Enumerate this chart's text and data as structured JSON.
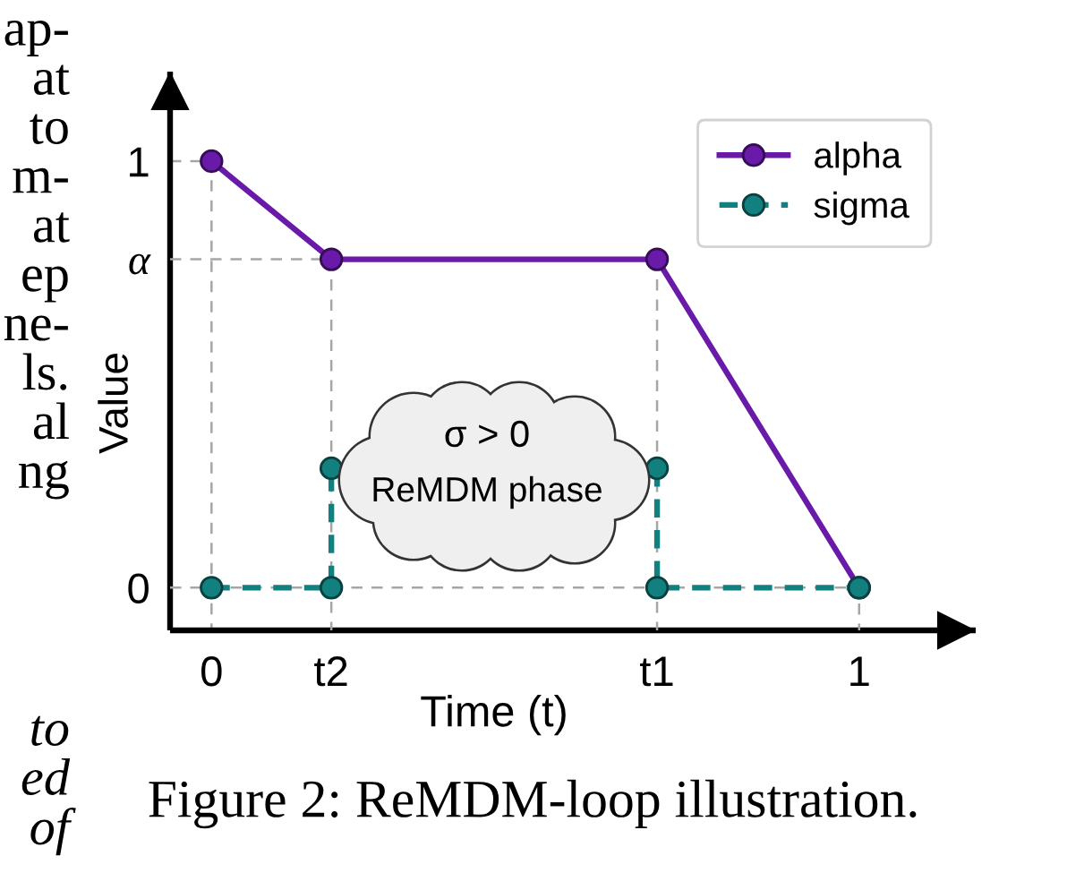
{
  "chart_data": {
    "type": "line",
    "xlabel": "Time (t)",
    "ylabel": "Value",
    "annotations": [
      "σ > 0",
      "ReMDM phase",
      "Figure 2: ReMDM-loop illustration.",
      "ap-\nat\nto\nm-\nat\nep\nne-\nls.\nal\nng",
      "to\ned\nof"
    ],
    "xlim": [
      -0.064,
      1.18
    ],
    "ylim": [
      -0.1,
      1.21
    ],
    "xticks": [
      0,
      {
        "value": 0.185,
        "label": "t2"
      },
      {
        "value": 0.688,
        "label": "t1"
      },
      1
    ],
    "yticks": [
      0,
      {
        "value": 0.77,
        "label": "α"
      },
      1
    ],
    "grid": false,
    "legend": "top right",
    "series": [
      {
        "type": "line",
        "color": "#a6a6a6",
        "line_style": "dashed",
        "marker": "none",
        "x": [
          -0.064,
          0,
          0
        ],
        "values": [
          1,
          1,
          -0.1
        ]
      },
      {
        "type": "line",
        "color": "#a6a6a6",
        "line_style": "dashed",
        "marker": "none",
        "x": [
          -0.064,
          0.185,
          0.185
        ],
        "values": [
          0.77,
          0.77,
          -0.1
        ]
      },
      {
        "type": "line",
        "color": "#a6a6a6",
        "line_style": "dashed",
        "marker": "none",
        "x": [
          0.688,
          0.688
        ],
        "values": [
          0.77,
          -0.1
        ]
      },
      {
        "type": "line",
        "color": "#a6a6a6",
        "line_style": "dashed",
        "marker": "none",
        "x": [
          -0.064,
          1,
          1
        ],
        "values": [
          0,
          0,
          -0.1
        ]
      },
      {
        "name": "alpha",
        "color": "#6a1aa8",
        "marker": "circle",
        "line_style": "solid",
        "x": [
          0,
          0.185,
          0.688,
          1
        ],
        "values": [
          1,
          0.77,
          0.77,
          0
        ]
      },
      {
        "name": "sigma",
        "color": "#138080",
        "marker": "circle",
        "line_style": "dashed",
        "x": [
          0,
          0.185,
          0.185,
          null,
          0.688,
          0.688,
          1
        ],
        "values": [
          0,
          0,
          0.28,
          null,
          0.28,
          0,
          0
        ]
      }
    ]
  }
}
